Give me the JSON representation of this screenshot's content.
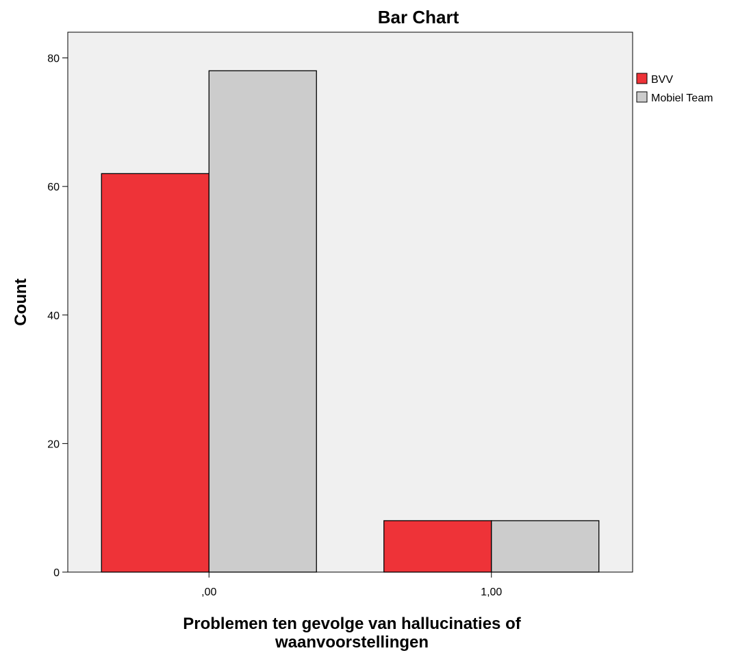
{
  "chart_data": {
    "type": "bar",
    "title": "Bar Chart",
    "xlabel_lines": [
      "Problemen ten gevolge van hallucinaties of",
      "waanvoorstellingen"
    ],
    "ylabel": "Count",
    "categories": [
      ",00",
      "1,00"
    ],
    "series": [
      {
        "name": "BVV",
        "values": [
          62,
          8
        ],
        "color": "#ee3338"
      },
      {
        "name": "Mobiel Team",
        "values": [
          78,
          8
        ],
        "color": "#cccccc"
      }
    ],
    "ylim": [
      0,
      84
    ],
    "yticks": [
      0,
      20,
      40,
      60,
      80
    ],
    "grid": false,
    "legend_position": "right",
    "plot_background": "#f0f0f0"
  }
}
